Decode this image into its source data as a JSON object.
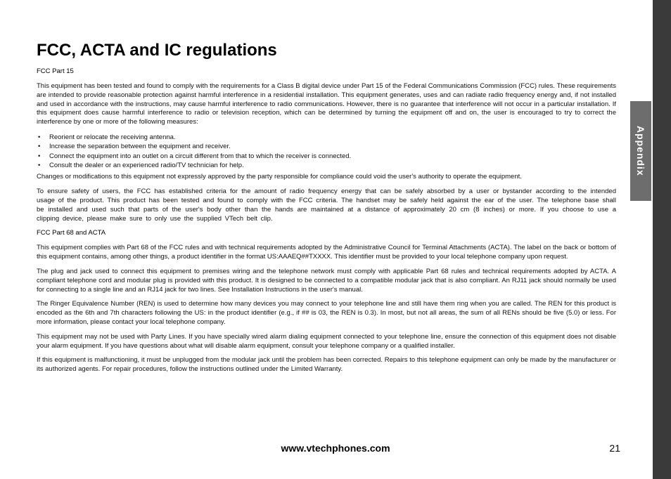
{
  "title": "FCC, ACTA and IC regulations",
  "sidebar": {
    "label": "Appendix"
  },
  "section1": {
    "heading": "FCC Part 15",
    "p1": "This equipment has been tested and found to comply with the requirements for a Class B digital device under Part 15 of the Federal Communications Commission (FCC) rules. These requirements are intended to provide reasonable protection against harmful interference in a residential installation. This equipment generates, uses and can radiate radio frequency energy and, if not installed and used in accordance with the instructions, may cause harmful interference to radio communications. However, there is no guarantee that interference will not occur in a particular installation. If this equipment does cause harmful interference to radio or television reception, which can be determined by turning the equipment off and on, the user is encouraged to try to correct the interference by one or more of the following measures:",
    "bullets": [
      "Reorient or relocate the receiving antenna.",
      "Increase the separation between the equipment and receiver.",
      "Connect the equipment into an outlet on a circuit different from that to which the receiver is connected.",
      "Consult the dealer or an experienced radio/TV technician for help."
    ],
    "p2": "Changes or modifications to this equipment not expressly approved by the party responsible for compliance could void the user's authority to operate the equipment.",
    "p3": "To ensure safety of users, the FCC has established criteria for the amount of radio frequency energy that can be safely absorbed by a user or bystander according to the intended usage of the product. This product has been tested and found to comply with the FCC criteria. The handset may be safely held against the ear of the user. The telephone base shall be installed and used such that parts of the user's body other than the hands are maintained at a distance of approximately 20 cm (8 inches) or more. If you choose to use a clipping device, please make sure to only use the supplied VTech belt clip."
  },
  "section2": {
    "heading": "FCC Part 68 and ACTA",
    "p1": "This equipment complies with Part 68 of the FCC rules and with technical requirements adopted by the Administrative Council for Terminal Attachments (ACTA). The label on the back or bottom of this equipment contains, among other things, a product identifier in the format US:AAAEQ##TXXXX. This identifier must be provided to your local telephone company upon request.",
    "p2": "The plug and jack used to connect this equipment to premises wiring and the telephone network must comply with applicable Part 68 rules and technical requirements adopted by ACTA. A compliant telephone cord and modular plug is provided with this product. It is designed to be connected to a compatible modular jack that is also compliant. An RJ11 jack should normally be used for connecting to a single line and an RJ14 jack for two lines. See Installation Instructions in the user's manual.",
    "p3": "The Ringer Equivalence Number (REN) is used to determine how many devices you may connect to your telephone line and still have them ring when you are called. The REN for this product is encoded as the 6th and 7th characters following the US: in the product identifier (e.g., if ## is 03, the REN is 0.3). In most, but not all areas, the sum of all RENs should be five (5.0) or less. For more information, please contact your local telephone company.",
    "p4": "This equipment may not be used with Party Lines. If you have specially wired alarm dialing equipment connected to your telephone line, ensure the connection of this equipment does not disable your alarm equipment. If you have questions about what will disable alarm equipment, consult your telephone company or a qualified installer.",
    "p5": "If this equipment is malfunctioning, it must be unplugged from the modular jack until the problem has been corrected. Repairs to this telephone equipment can only be made by the manufacturer or its authorized agents. For repair procedures, follow the instructions outlined under the Limited Warranty."
  },
  "footer": {
    "url": "www.vtechphones.com",
    "page": "21"
  },
  "colors": {
    "sidebar_bg": "#6d6d6d",
    "rightbar_bg": "#3a3a3a",
    "text": "#111111",
    "page_bg": "#ffffff"
  }
}
